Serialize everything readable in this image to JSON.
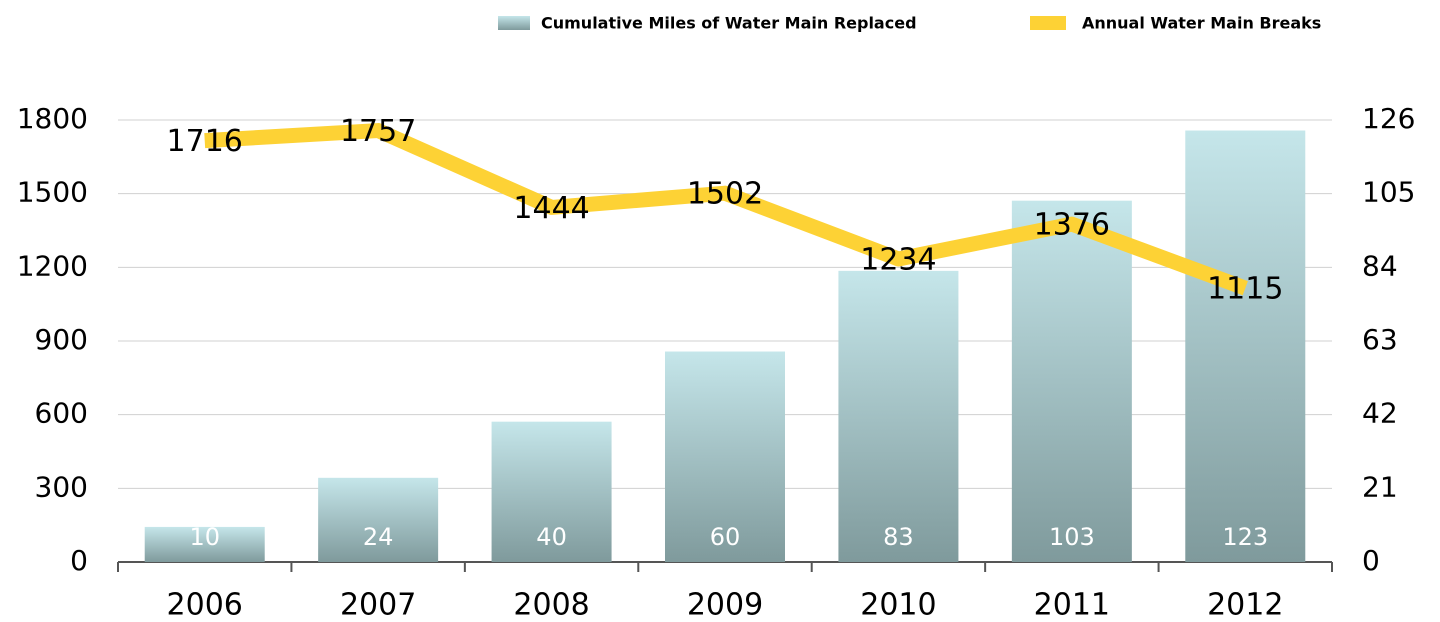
{
  "chart_data": {
    "type": "bar+line",
    "categories": [
      "2006",
      "2007",
      "2008",
      "2009",
      "2010",
      "2011",
      "2012"
    ],
    "series": [
      {
        "name": "Cumulative Miles of Water Main Replaced",
        "type": "bar",
        "axis": "y2",
        "color": "#c5e6ea",
        "values": [
          10,
          24,
          40,
          60,
          83,
          103,
          123
        ]
      },
      {
        "name": "Annual Water Main Breaks",
        "type": "line",
        "axis": "y",
        "color": "#fdd235",
        "values": [
          1716,
          1757,
          1444,
          1502,
          1234,
          1376,
          1115
        ]
      }
    ],
    "ylim": [
      0,
      1800
    ],
    "yticks": [
      0,
      300,
      600,
      900,
      1200,
      1500,
      1800
    ],
    "y2lim": [
      0,
      126
    ],
    "y2ticks": [
      0,
      21,
      42,
      63,
      84,
      105,
      126
    ],
    "grid": true,
    "legend": "top"
  }
}
